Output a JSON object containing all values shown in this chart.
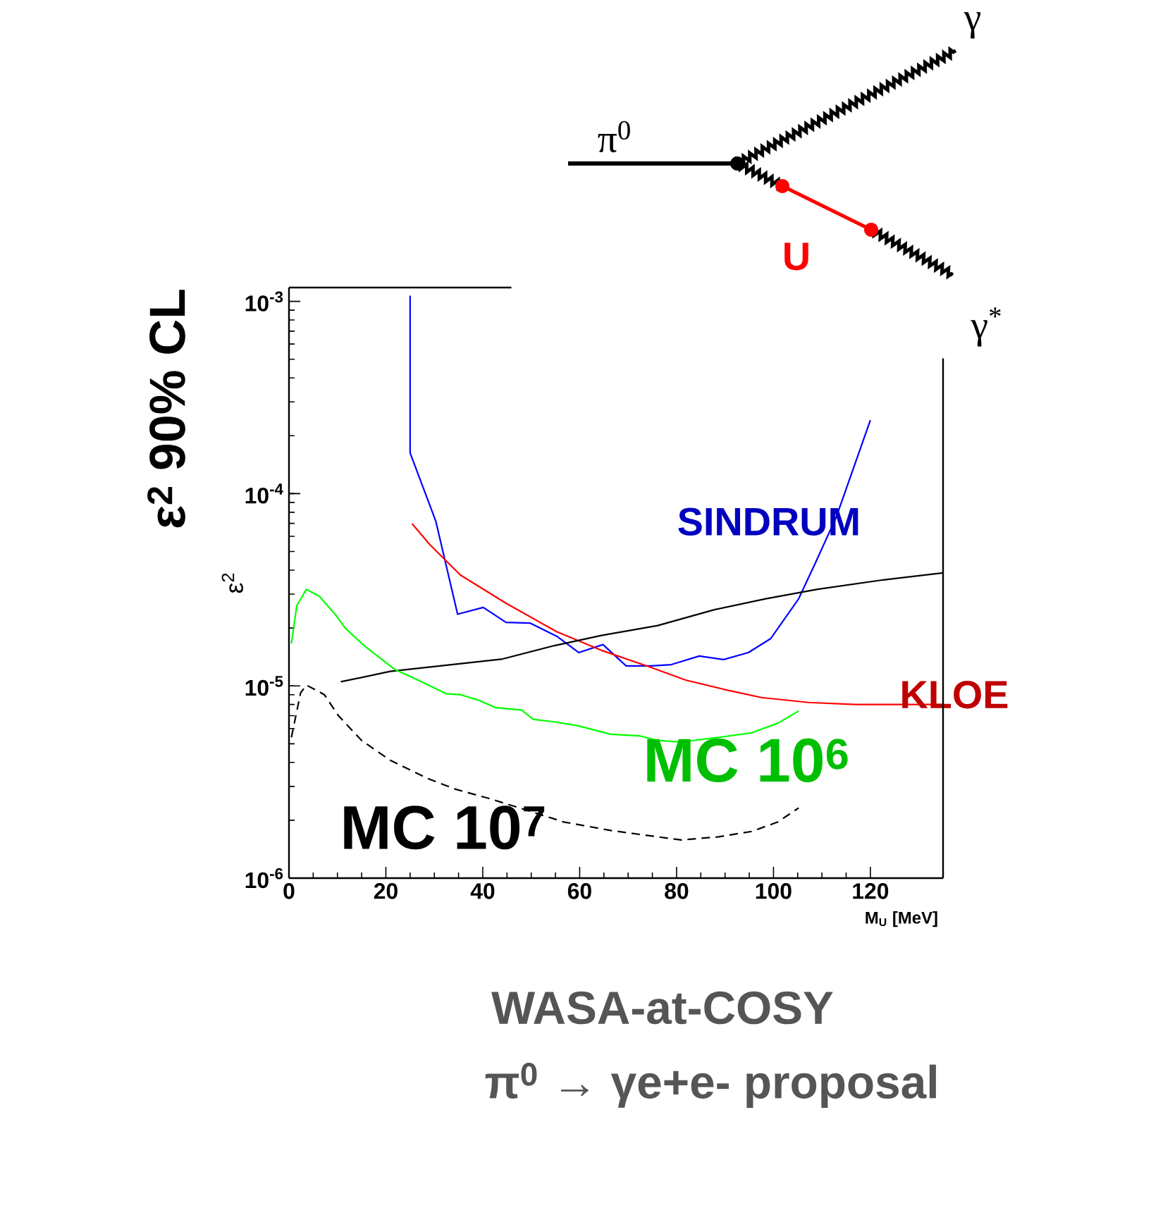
{
  "chart_data": {
    "type": "line",
    "title": "WASA-at-COSY",
    "subtitle": "π$^{0}$ → γe+e- proposal",
    "xlabel": "M$_{U}$ [MeV]",
    "ylabel": "ε$^{2}$",
    "log": "y",
    "xlim": [
      0,
      135
    ],
    "ylim": [
      1e-06,
      0.00118
    ],
    "xticks": [
      0,
      20,
      40,
      60,
      80,
      100,
      120
    ],
    "yticks": [
      {
        "value": 1e-06,
        "label": "10$^{-6}$"
      },
      {
        "value": 1e-05,
        "label": "10$^{-5}$"
      },
      {
        "value": 0.0001,
        "label": "10$^{-4}$"
      },
      {
        "value": 0.001,
        "label": "10$^{-3}$"
      }
    ],
    "annotations": [
      "ε$^{2}$ 90% CL",
      "π$^{0}$",
      "U",
      "γ",
      "γ$^{*}$"
    ],
    "series": [
      {
        "name": "SINDRUM",
        "color": "#0000ff",
        "x": [
          25,
          25,
          30.3,
          34.8,
          40.1,
          44.8,
          49.8,
          55.3,
          59.8,
          64.8,
          69.6,
          74.7,
          78.9,
          84.7,
          89.7,
          94.8,
          99.4,
          105.2,
          108.6,
          113,
          120
        ],
        "values": [
          0.00107,
          0.000163,
          7.2e-05,
          2.36e-05,
          2.56e-05,
          2.14e-05,
          2.12e-05,
          1.81e-05,
          1.49e-05,
          1.64e-05,
          1.27e-05,
          1.27e-05,
          1.29e-05,
          1.43e-05,
          1.37e-05,
          1.49e-05,
          1.76e-05,
          2.84e-05,
          4.33e-05,
          7.6e-05,
          0.000241
        ]
      },
      {
        "name": "KLOE",
        "color": "#ff0000",
        "x": [
          25.4,
          29.1,
          35.4,
          44.8,
          55.3,
          64.5,
          74.2,
          82,
          89.7,
          97.5,
          107.2,
          116.9,
          135
        ],
        "values": [
          6.98e-05,
          5.42e-05,
          3.77e-05,
          2.69e-05,
          1.91e-05,
          1.53e-05,
          1.26e-05,
          1.07e-05,
          9.6e-06,
          8.7e-06,
          8.2e-06,
          8e-06,
          8e-06
        ]
      },
      {
        "color": "#000000",
        "x": [
          10.7,
          20.9,
          33.5,
          44.1,
          54.8,
          64.5,
          76.1,
          87.8,
          98.4,
          109.1,
          122.7,
          135
        ],
        "values": [
          1.05e-05,
          1.19e-05,
          1.29e-05,
          1.38e-05,
          1.62e-05,
          1.83e-05,
          2.06e-05,
          2.49e-05,
          2.84e-05,
          3.18e-05,
          3.56e-05,
          3.87e-05
        ]
      },
      {
        "name": "MC 10$^{6}$",
        "color": "#00ff00",
        "x": [
          0.5,
          1.6,
          3.6,
          6.3,
          9.7,
          11.6,
          15.5,
          21.8,
          26.7,
          32.5,
          35.4,
          39.3,
          42.7,
          48,
          50.4,
          54.8,
          59.7,
          66.4,
          72.3,
          76.1,
          81,
          88.7,
          95.5,
          100.9,
          105.2
        ],
        "values": [
          1.66e-05,
          2.61e-05,
          3.18e-05,
          2.92e-05,
          2.33e-05,
          2e-05,
          1.62e-05,
          1.22e-05,
          1.07e-05,
          9.1e-06,
          9e-06,
          8.4e-06,
          7.7e-06,
          7.5e-06,
          6.7e-06,
          6.5e-06,
          6.2e-06,
          5.6e-06,
          5.5e-06,
          5.2e-06,
          5.1e-06,
          5.4e-06,
          5.7e-06,
          6.4e-06,
          7.4e-06
        ]
      },
      {
        "name": "MC 10$^{7}$",
        "color": "#000000",
        "line_style": "dashed",
        "x": [
          0.5,
          2.4,
          3.6,
          7.3,
          10.2,
          15,
          20.9,
          28.6,
          34.4,
          41.2,
          49,
          56.7,
          66.4,
          76.1,
          81,
          88.7,
          95.5,
          100.9,
          105.2
        ],
        "values": [
          5.4e-06,
          9.2e-06,
          1.01e-05,
          9e-06,
          7e-06,
          5.2e-06,
          4.1e-06,
          3.3e-06,
          2.9e-06,
          2.6e-06,
          2.26e-06,
          1.96e-06,
          1.77e-06,
          1.64e-06,
          1.58e-06,
          1.64e-06,
          1.75e-06,
          1.96e-06,
          2.32e-06
        ]
      }
    ]
  }
}
